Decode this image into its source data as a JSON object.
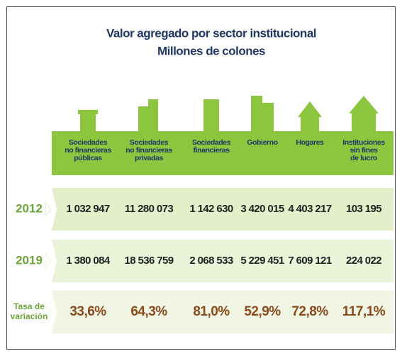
{
  "header": {
    "title": "Valor agregado por sector institucional",
    "subtitle": "Millones de colones"
  },
  "table": {
    "columns": [
      [
        "Sociedades",
        "no financieras",
        "públicas"
      ],
      [
        "Sociedades",
        "no financieras",
        "privadas"
      ],
      [
        "Sociedades",
        "financieras"
      ],
      [
        "Gobierno"
      ],
      [
        "Hogares"
      ],
      [
        "Instituciones",
        "sin fines",
        "de lucro"
      ]
    ],
    "rows": [
      {
        "label": [
          "2012"
        ],
        "cells": [
          "1 032 947",
          "11 280 073",
          "1 142 630",
          "3 420 015",
          "4 403 217",
          "103 195"
        ]
      },
      {
        "label": [
          "2019"
        ],
        "cells": [
          "1 380 084",
          "18 536 759",
          "2 068 533",
          "5 229 451",
          "7 609 121",
          "224 022"
        ]
      },
      {
        "label": [
          "Tasa de",
          "variación"
        ],
        "cells": [
          "33,6%",
          "64,3%",
          "81,0%",
          "52,9%",
          "72,8%",
          "117,1%"
        ]
      }
    ]
  }
}
